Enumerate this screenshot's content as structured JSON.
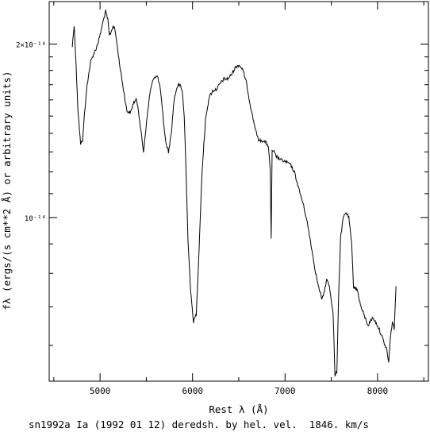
{
  "caption": "sn1992a Ia (1992 01 12) deredsh. by hel. vel.  1846. km/s",
  "chart_data": {
    "type": "line",
    "title": "",
    "xlabel": "Rest λ (Å)",
    "ylabel": "fλ (ergs/(s cm**2 Å) or arbitrary units)",
    "xlim": [
      4450,
      8550
    ],
    "ylim": [
      5.2e-15,
      2.37e-14
    ],
    "yscale": "log",
    "grid": false,
    "x_tick_labels": [
      {
        "value": 5000,
        "label": "5000"
      },
      {
        "value": 6000,
        "label": "6000"
      },
      {
        "value": 7000,
        "label": "7000"
      },
      {
        "value": 8000,
        "label": "8000"
      }
    ],
    "x_minor_ticks": [
      4500,
      5500,
      6500,
      7500,
      8500
    ],
    "y_tick_labels": [
      {
        "value": 2e-14,
        "label": "2×10⁻¹⁴"
      },
      {
        "value": 1e-14,
        "label": "10⁻¹⁴"
      }
    ],
    "y_minor_ticks": [
      6e-15,
      7e-15,
      8e-15,
      9e-15,
      1.1e-14,
      1.2e-14,
      1.3e-14,
      1.4e-14,
      1.5e-14,
      1.6e-14,
      1.7e-14,
      1.8e-14,
      1.9e-14
    ],
    "series": [
      {
        "name": "",
        "x": [
          4700,
          4720,
          4740,
          4760,
          4790,
          4810,
          4830,
          4860,
          4900,
          4930,
          4960,
          5000,
          5030,
          5060,
          5085,
          5100,
          5120,
          5140,
          5160,
          5180,
          5210,
          5250,
          5290,
          5330,
          5360,
          5390,
          5410,
          5440,
          5470,
          5500,
          5540,
          5580,
          5620,
          5650,
          5680,
          5710,
          5740,
          5770,
          5800,
          5830,
          5850,
          5870,
          5890,
          5910,
          5930,
          5950,
          5980,
          6010,
          6040,
          6070,
          6100,
          6140,
          6180,
          6220,
          6260,
          6300,
          6340,
          6380,
          6420,
          6460,
          6500,
          6540,
          6580,
          6620,
          6660,
          6700,
          6720,
          6760,
          6790,
          6820,
          6840,
          6850,
          6860,
          6880,
          6900,
          6950,
          7000,
          7050,
          7100,
          7150,
          7200,
          7240,
          7280,
          7320,
          7360,
          7400,
          7420,
          7450,
          7480,
          7520,
          7540,
          7560,
          7580,
          7600,
          7630,
          7660,
          7690,
          7720,
          7740,
          7780,
          7820,
          7850,
          7880,
          7900,
          7920,
          7950,
          8000,
          8050,
          8080,
          8100,
          8120,
          8140,
          8160,
          8180,
          8200
        ],
        "y": [
          1.98e-14,
          2.16e-14,
          1.85e-14,
          1.55e-14,
          1.34e-14,
          1.36e-14,
          1.5e-14,
          1.7e-14,
          1.87e-14,
          1.92e-14,
          1.97e-14,
          2.07e-14,
          2.18e-14,
          2.28e-14,
          2.2e-14,
          2.07e-14,
          2.1e-14,
          2.15e-14,
          2.12e-14,
          2.02e-14,
          1.85e-14,
          1.68e-14,
          1.53e-14,
          1.52e-14,
          1.58e-14,
          1.6e-14,
          1.56e-14,
          1.42e-14,
          1.3e-14,
          1.45e-14,
          1.65e-14,
          1.75e-14,
          1.76e-14,
          1.68e-14,
          1.5e-14,
          1.35e-14,
          1.3e-14,
          1.4e-14,
          1.6e-14,
          1.68e-14,
          1.7e-14,
          1.69e-14,
          1.65e-14,
          1.5e-14,
          1.2e-14,
          9.2e-15,
          7.4e-15,
          6.6e-15,
          6.8e-15,
          8.8e-15,
          1.18e-14,
          1.48e-14,
          1.62e-14,
          1.66e-14,
          1.67e-14,
          1.71e-14,
          1.74e-14,
          1.74e-14,
          1.77e-14,
          1.82e-14,
          1.84e-14,
          1.81e-14,
          1.72e-14,
          1.58e-14,
          1.47e-14,
          1.38e-14,
          1.36e-14,
          1.36e-14,
          1.35e-14,
          1.33e-14,
          1.2e-14,
          9.2e-15,
          1.3e-14,
          1.3e-14,
          1.28e-14,
          1.26e-14,
          1.25e-14,
          1.24e-14,
          1.2e-14,
          1.12e-14,
          1.05e-14,
          9.8e-15,
          9e-15,
          8.2e-15,
          7.6e-15,
          7.2e-15,
          7.4e-15,
          7.8e-15,
          7.6e-15,
          6.8e-15,
          5.3e-15,
          5.4e-15,
          7.4e-15,
          9.2e-15,
          1e-14,
          1.02e-14,
          1e-14,
          9e-15,
          7.6e-15,
          7.5e-15,
          7e-15,
          6.8e-15,
          6.6e-15,
          6.5e-15,
          6.6e-15,
          6.7e-15,
          6.5e-15,
          6.2e-15,
          6e-15,
          5.9e-15,
          5.6e-15,
          6.2e-15,
          6.6e-15,
          6.4e-15,
          7.6e-15
        ]
      }
    ]
  }
}
